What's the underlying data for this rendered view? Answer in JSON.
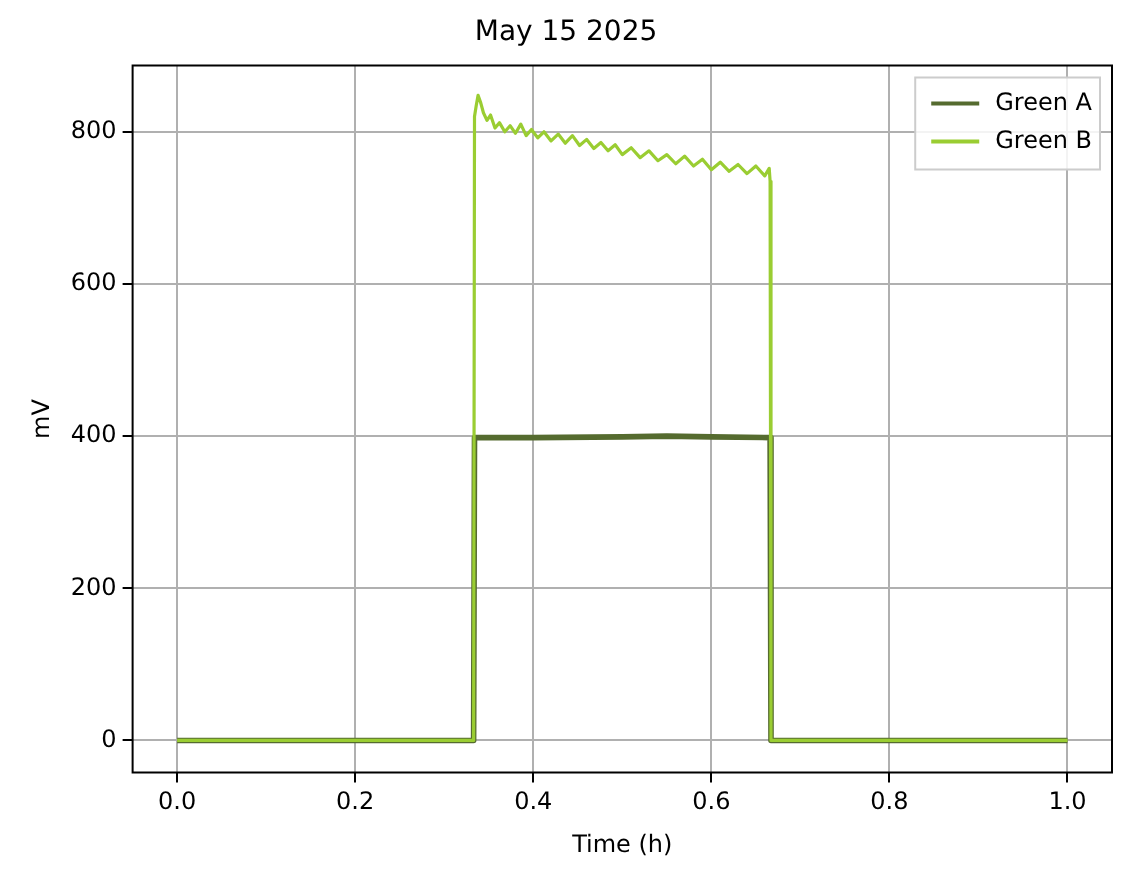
{
  "chart_data": {
    "type": "line",
    "title": "May 15 2025",
    "xlabel": "Time (h)",
    "ylabel": "mV",
    "xlim": [
      -0.05,
      1.05
    ],
    "ylim": [
      -42,
      887
    ],
    "xticks": [
      {
        "value": 0,
        "label": "0.0"
      },
      {
        "value": 0.2,
        "label": "0.2"
      },
      {
        "value": 0.4,
        "label": "0.4"
      },
      {
        "value": 0.6,
        "label": "0.6"
      },
      {
        "value": 0.8,
        "label": "0.8"
      },
      {
        "value": 1,
        "label": "1.0"
      }
    ],
    "yticks": [
      0,
      200,
      400,
      600,
      800
    ],
    "grid": true,
    "legend": "top right",
    "marker": "none",
    "line_style": "solid",
    "series": [
      {
        "name": "Green A",
        "color": "#556b2f",
        "x": [
          0,
          0.333,
          0.334,
          0.4,
          0.5,
          0.55,
          0.6,
          0.666,
          0.667,
          1
        ],
        "values": [
          0,
          0,
          398,
          398,
          399,
          400,
          399,
          398,
          0,
          0
        ]
      },
      {
        "name": "Green B",
        "color": "#9acd32",
        "x": [
          0,
          0.333,
          0.334,
          0.336,
          0.338,
          0.341,
          0.344,
          0.348,
          0.352,
          0.357,
          0.362,
          0.368,
          0.374,
          0.38,
          0.386,
          0.392,
          0.398,
          0.405,
          0.412,
          0.42,
          0.428,
          0.436,
          0.444,
          0.452,
          0.46,
          0.468,
          0.476,
          0.484,
          0.492,
          0.5,
          0.51,
          0.52,
          0.53,
          0.54,
          0.55,
          0.56,
          0.57,
          0.58,
          0.59,
          0.6,
          0.61,
          0.62,
          0.63,
          0.64,
          0.65,
          0.66,
          0.665,
          0.666,
          0.667,
          1
        ],
        "values": [
          0,
          0,
          820,
          835,
          848,
          838,
          825,
          815,
          822,
          805,
          812,
          800,
          808,
          798,
          810,
          795,
          803,
          792,
          800,
          788,
          797,
          785,
          795,
          782,
          790,
          778,
          786,
          775,
          783,
          770,
          779,
          766,
          775,
          762,
          770,
          758,
          768,
          755,
          764,
          750,
          760,
          748,
          757,
          745,
          755,
          742,
          752,
          735,
          0,
          0
        ]
      }
    ]
  }
}
